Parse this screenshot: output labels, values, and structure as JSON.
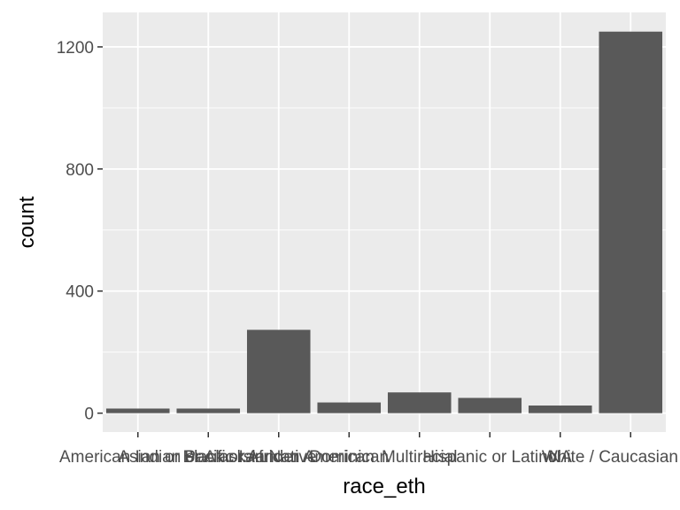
{
  "chart_data": {
    "type": "bar",
    "xlabel": "race_eth",
    "ylabel": "count",
    "categories": [
      "American Indian or Alaskan Native",
      "Asian or Pacific Islander",
      "Black or African American",
      "Dominican",
      "Multiracial",
      "Hispanic or Latino",
      "NA",
      "White / Caucasian"
    ],
    "values": [
      15,
      15,
      273,
      35,
      68,
      50,
      25,
      1250
    ],
    "ylim": [
      -62,
      1313
    ],
    "yticks": [
      0,
      400,
      800,
      1200
    ],
    "ytick_labels": [
      "0",
      "400",
      "800",
      "1200"
    ],
    "grid": true,
    "colors": {
      "panel": "#ebebeb",
      "grid_major": "#ffffff",
      "bar": "#595959",
      "tick_text": "#4d4d4d",
      "axis_text": "#000000",
      "tick_mark": "#333333"
    }
  }
}
